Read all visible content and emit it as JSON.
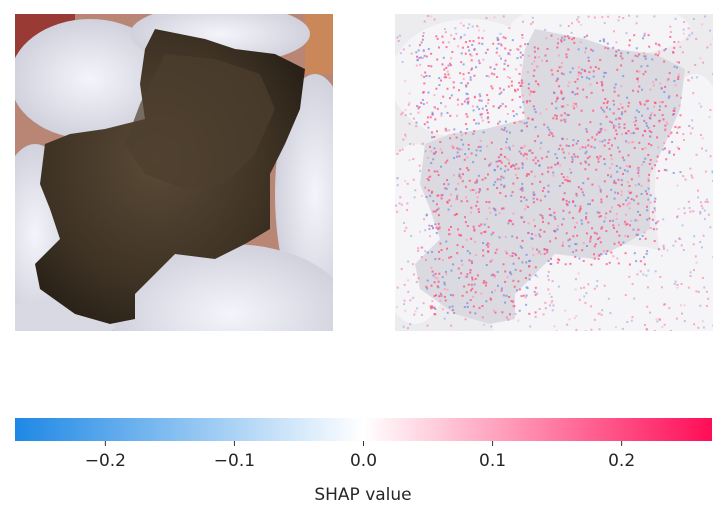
{
  "chart_data": {
    "type": "heatmap",
    "title": "",
    "panels": [
      {
        "name": "input-image",
        "content": "dental photograph of a molar with dark brown carious lesion in the center"
      },
      {
        "name": "shap-overlay",
        "content": "SHAP attribution map (red = positive, blue = negative) overlaid on a faint grayscale copy of the input"
      }
    ],
    "colorbar": {
      "label": "SHAP value",
      "range": [
        -0.27,
        0.27
      ],
      "ticks": [
        -0.2,
        -0.1,
        0.0,
        0.1,
        0.2
      ],
      "tick_labels": [
        "−0.2",
        "−0.1",
        "0.0",
        "0.1",
        "0.2"
      ],
      "colormap": [
        "#1e88e5",
        "#ffffff",
        "#ff0d57"
      ],
      "orientation": "horizontal"
    }
  }
}
